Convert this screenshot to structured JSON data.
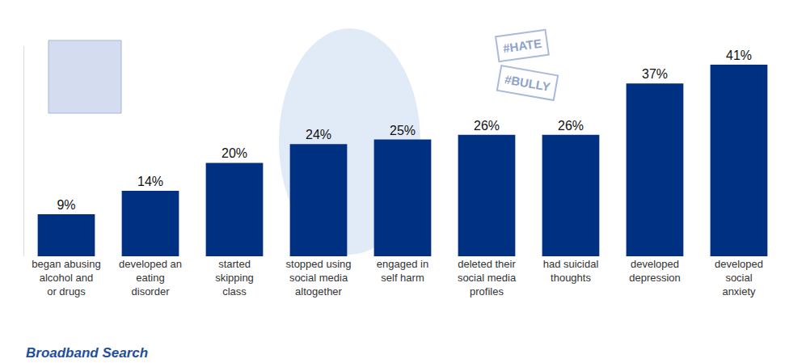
{
  "chart_data": {
    "type": "bar",
    "categories": [
      "began abusing alcohol and or drugs",
      "developed an eating disorder",
      "started skipping class",
      "stopped using social media altogether",
      "engaged in self harm",
      "deleted their social media profiles",
      "had suicidal thoughts",
      "developed depression",
      "developed social anxiety"
    ],
    "values": [
      9,
      14,
      20,
      24,
      25,
      26,
      26,
      37,
      41
    ],
    "value_labels": [
      "9%",
      "14%",
      "20%",
      "24%",
      "25%",
      "26%",
      "26%",
      "37%",
      "41%"
    ],
    "color": "#003082",
    "ylim": [
      0,
      45
    ],
    "data_labels": true,
    "tick_labels": "x",
    "grid": false,
    "annotations": [
      "#HATE",
      "#BULLY"
    ],
    "source": "Broadband Search"
  }
}
